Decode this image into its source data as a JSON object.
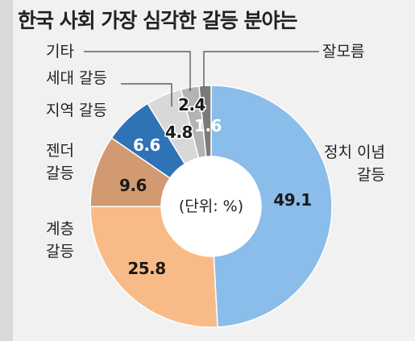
{
  "chart_data": {
    "type": "pie",
    "title": "한국 사회 가장 심각한 갈등 분야는",
    "unit_note": "(단위: %)",
    "slices": [
      {
        "label": "정치 이념 갈등",
        "value": 49.1,
        "value_label": "49.1",
        "color": "#8abde9",
        "text_color": "#1a1a1a",
        "label_lines": [
          "정치 이념",
          "갈등"
        ]
      },
      {
        "label": "계층 갈등",
        "value": 25.8,
        "value_label": "25.8",
        "color": "#f8bb87",
        "text_color": "#1a1a1a",
        "label_lines": [
          "계층",
          "갈등"
        ]
      },
      {
        "label": "젠더 갈등",
        "value": 9.6,
        "value_label": "9.6",
        "color": "#d29a70",
        "text_color": "#1a1a1a",
        "label_lines": [
          "젠더",
          "갈등"
        ]
      },
      {
        "label": "지역 갈등",
        "value": 6.6,
        "value_label": "6.6",
        "color": "#2f73b6",
        "text_color": "#ffffff",
        "label_lines": [
          "지역 갈등"
        ]
      },
      {
        "label": "세대 갈등",
        "value": 4.8,
        "value_label": "4.8",
        "color": "#d8d8d8",
        "text_color": "#1a1a1a",
        "label_lines": [
          "세대 갈등"
        ]
      },
      {
        "label": "기타",
        "value": 2.4,
        "value_label": "2.4",
        "color": "#b3b3b3",
        "text_color": "#1a1a1a",
        "label_lines": [
          "기타"
        ]
      },
      {
        "label": "잘모름",
        "value": 1.6,
        "value_label": "1.6",
        "color": "#7a7a7a",
        "text_color": "#ffffff",
        "label_lines": [
          "잘모름"
        ]
      }
    ],
    "legend": "none"
  }
}
